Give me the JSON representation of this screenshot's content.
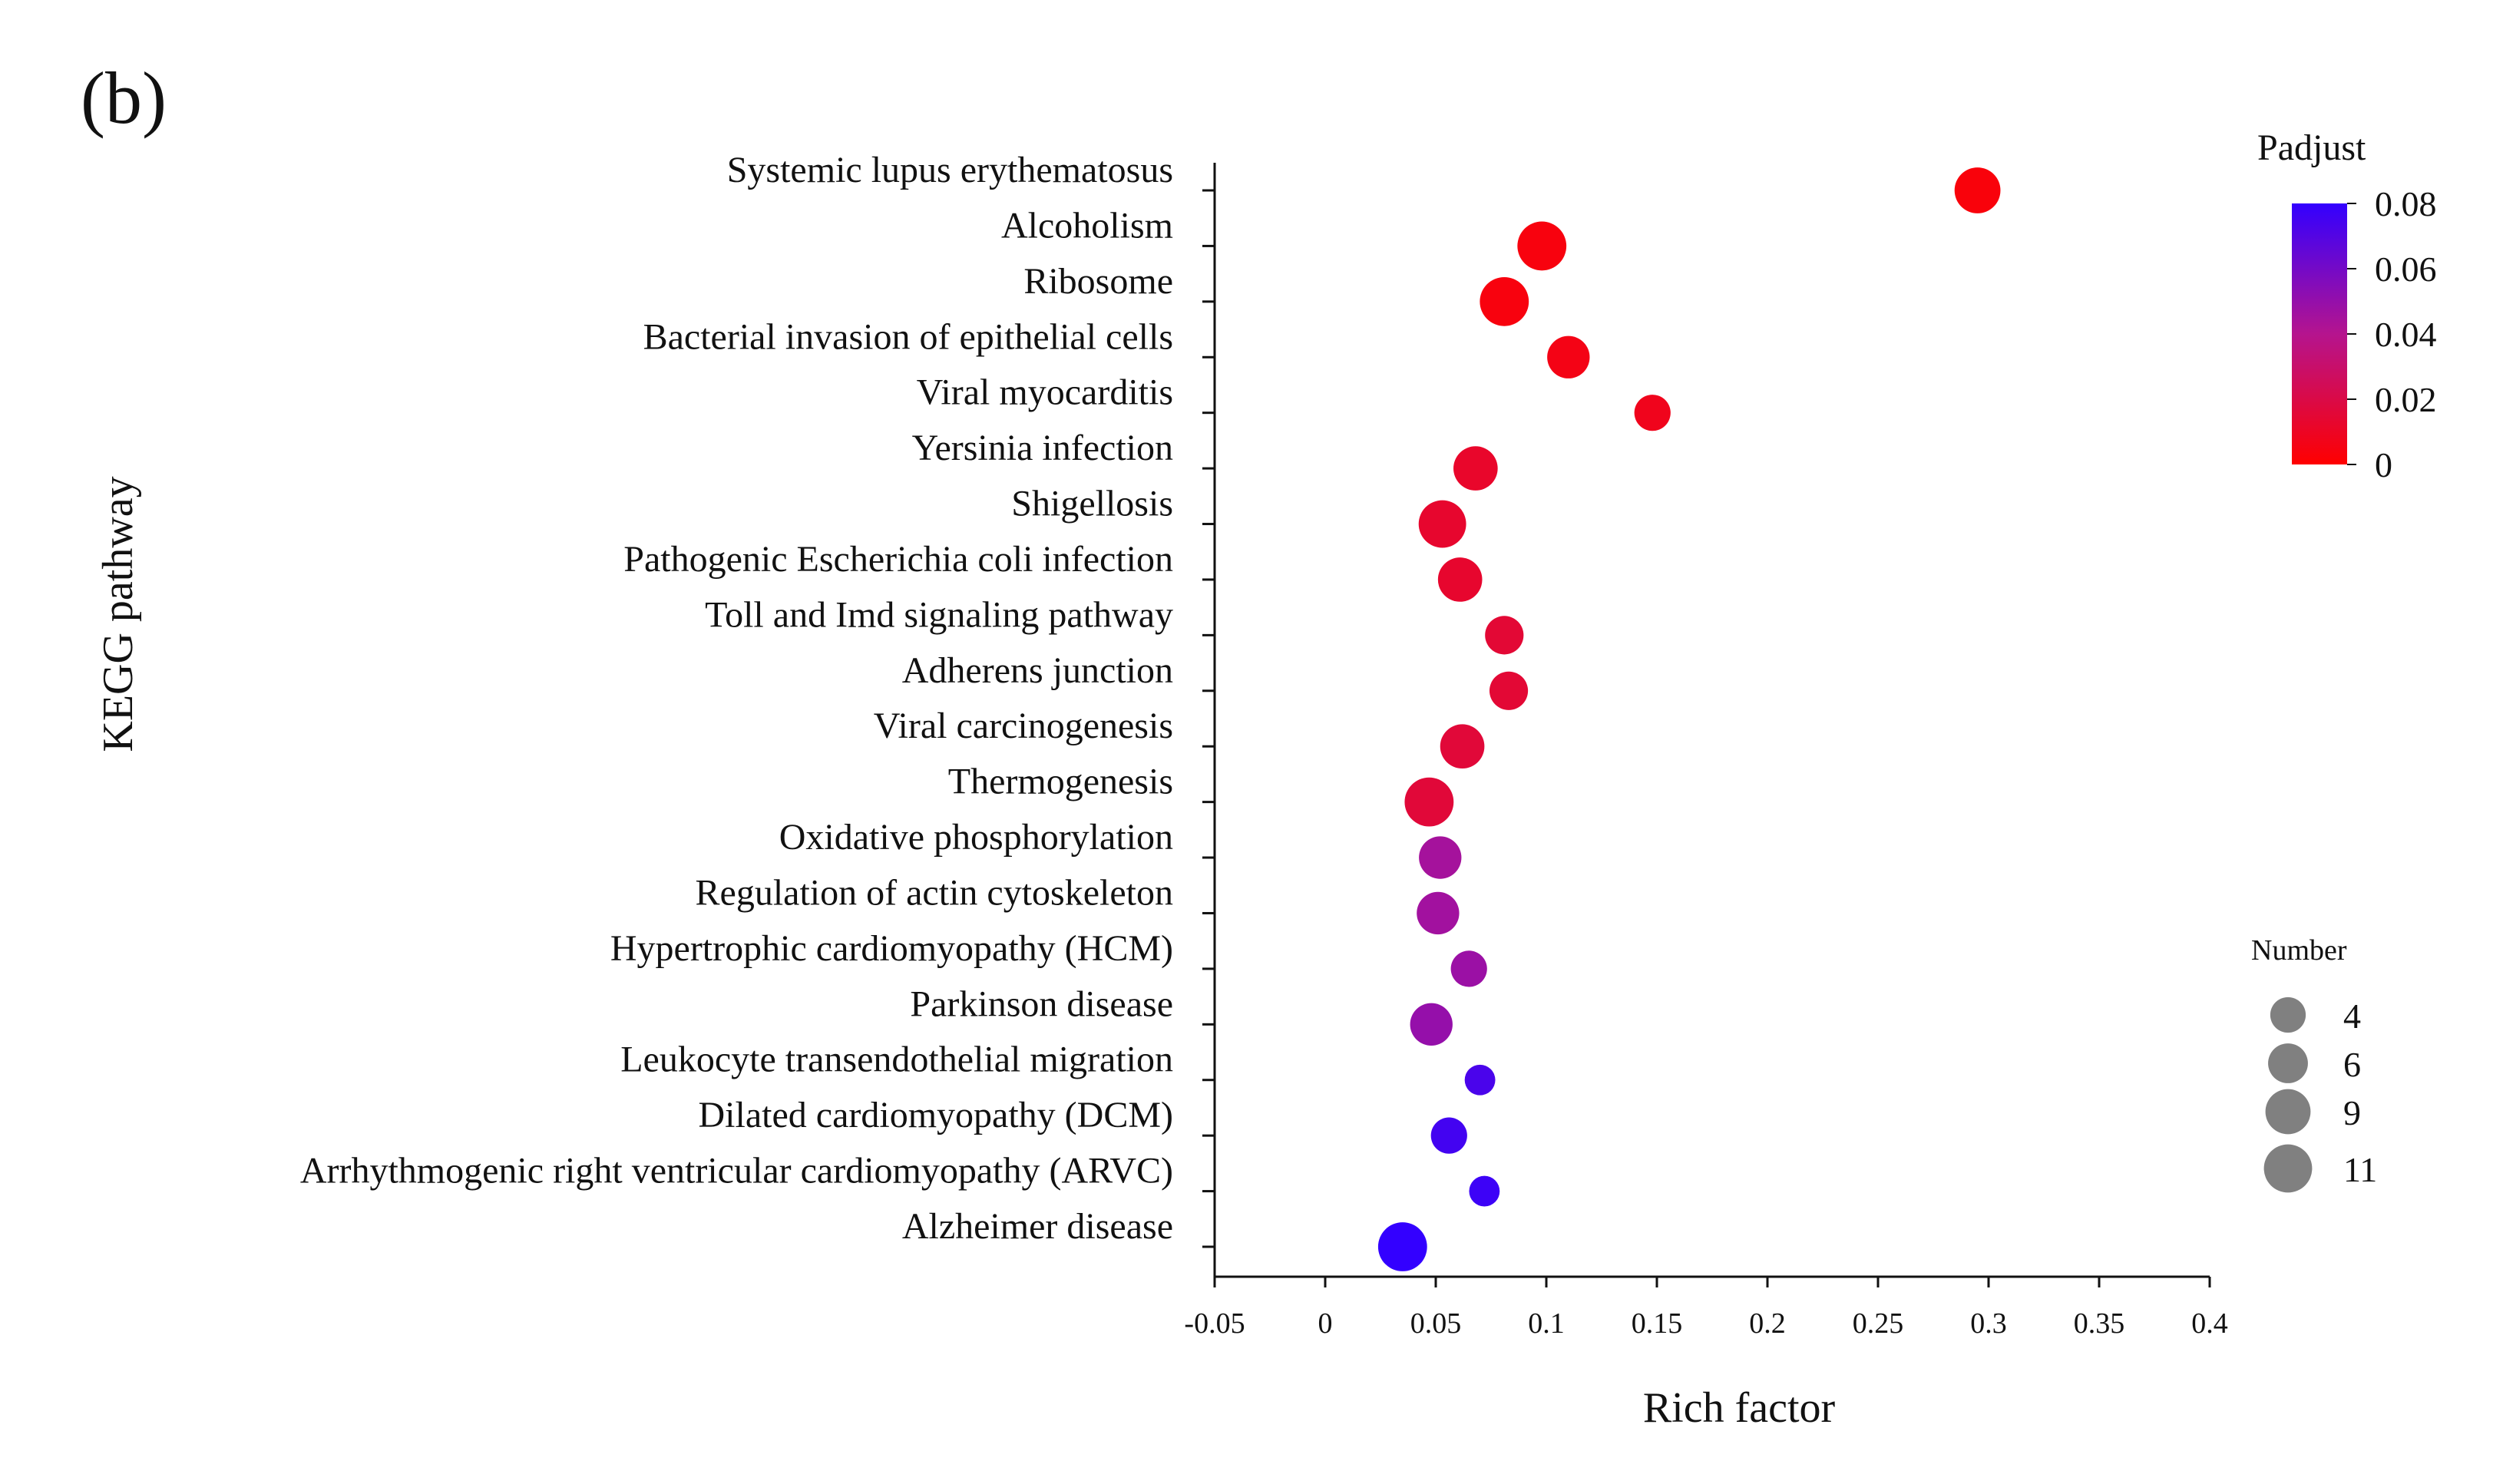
{
  "panel_label": "(b)",
  "chart_data": {
    "type": "scatter",
    "title": "",
    "xlabel": "Rich factor",
    "ylabel": "KEGG pathway",
    "xlim": [
      -0.05,
      0.4
    ],
    "xticks": [
      -0.05,
      0,
      0.05,
      0.1,
      0.15,
      0.2,
      0.25,
      0.3,
      0.35,
      0.4
    ],
    "xtick_labels": [
      "-0.05",
      "0",
      "0.05",
      "0.1",
      "0.15",
      "0.2",
      "0.25",
      "0.3",
      "0.35",
      "0.4"
    ],
    "grid": false,
    "points": [
      {
        "pathway": "Systemic lupus erythematosus",
        "rich_factor": 0.295,
        "padjust": 0.003,
        "number": 9
      },
      {
        "pathway": "Alcoholism",
        "rich_factor": 0.098,
        "padjust": 0.004,
        "number": 11
      },
      {
        "pathway": "Ribosome",
        "rich_factor": 0.081,
        "padjust": 0.004,
        "number": 11
      },
      {
        "pathway": "Bacterial invasion of epithelial cells",
        "rich_factor": 0.11,
        "padjust": 0.006,
        "number": 7
      },
      {
        "pathway": "Viral myocarditis",
        "rich_factor": 0.148,
        "padjust": 0.008,
        "number": 4
      },
      {
        "pathway": "Yersinia infection",
        "rich_factor": 0.068,
        "padjust": 0.012,
        "number": 8
      },
      {
        "pathway": "Shigellosis",
        "rich_factor": 0.053,
        "padjust": 0.013,
        "number": 10
      },
      {
        "pathway": "Pathogenic Escherichia coli infection",
        "rich_factor": 0.061,
        "padjust": 0.013,
        "number": 8
      },
      {
        "pathway": "Toll and Imd signaling pathway",
        "rich_factor": 0.081,
        "padjust": 0.015,
        "number": 5
      },
      {
        "pathway": "Adherens junction",
        "rich_factor": 0.083,
        "padjust": 0.015,
        "number": 5
      },
      {
        "pathway": "Viral carcinogenesis",
        "rich_factor": 0.062,
        "padjust": 0.016,
        "number": 8
      },
      {
        "pathway": "Thermogenesis",
        "rich_factor": 0.047,
        "padjust": 0.016,
        "number": 11
      },
      {
        "pathway": "Oxidative phosphorylation",
        "rich_factor": 0.052,
        "padjust": 0.045,
        "number": 7
      },
      {
        "pathway": "Regulation of actin cytoskeleton",
        "rich_factor": 0.051,
        "padjust": 0.046,
        "number": 7
      },
      {
        "pathway": "Hypertrophic cardiomyopathy (HCM)",
        "rich_factor": 0.065,
        "padjust": 0.048,
        "number": 4
      },
      {
        "pathway": "Parkinson disease",
        "rich_factor": 0.048,
        "padjust": 0.05,
        "number": 7
      },
      {
        "pathway": "Leukocyte transendothelial migration",
        "rich_factor": 0.07,
        "padjust": 0.073,
        "number": 2
      },
      {
        "pathway": "Dilated cardiomyopathy (DCM)",
        "rich_factor": 0.056,
        "padjust": 0.075,
        "number": 4
      },
      {
        "pathway": "Arrhythmogenic right ventricular cardiomyopathy (ARVC)",
        "rich_factor": 0.072,
        "padjust": 0.077,
        "number": 2
      },
      {
        "pathway": "Alzheimer disease",
        "rich_factor": 0.035,
        "padjust": 0.082,
        "number": 11
      }
    ],
    "color_legend": {
      "title": "Padjust",
      "min": 0,
      "max": 0.08,
      "ticks": [
        0,
        0.02,
        0.04,
        0.06,
        0.08
      ],
      "tick_labels": [
        "0",
        "0.02",
        "0.04",
        "0.06",
        "0.08"
      ],
      "low_color": "#ff0000",
      "high_color": "#3300ff"
    },
    "size_legend": {
      "title": "Number",
      "values": [
        4,
        6,
        9,
        11
      ],
      "labels": [
        "4",
        "6",
        "9",
        "11"
      ],
      "color": "#808080"
    },
    "legend_position": "right"
  }
}
